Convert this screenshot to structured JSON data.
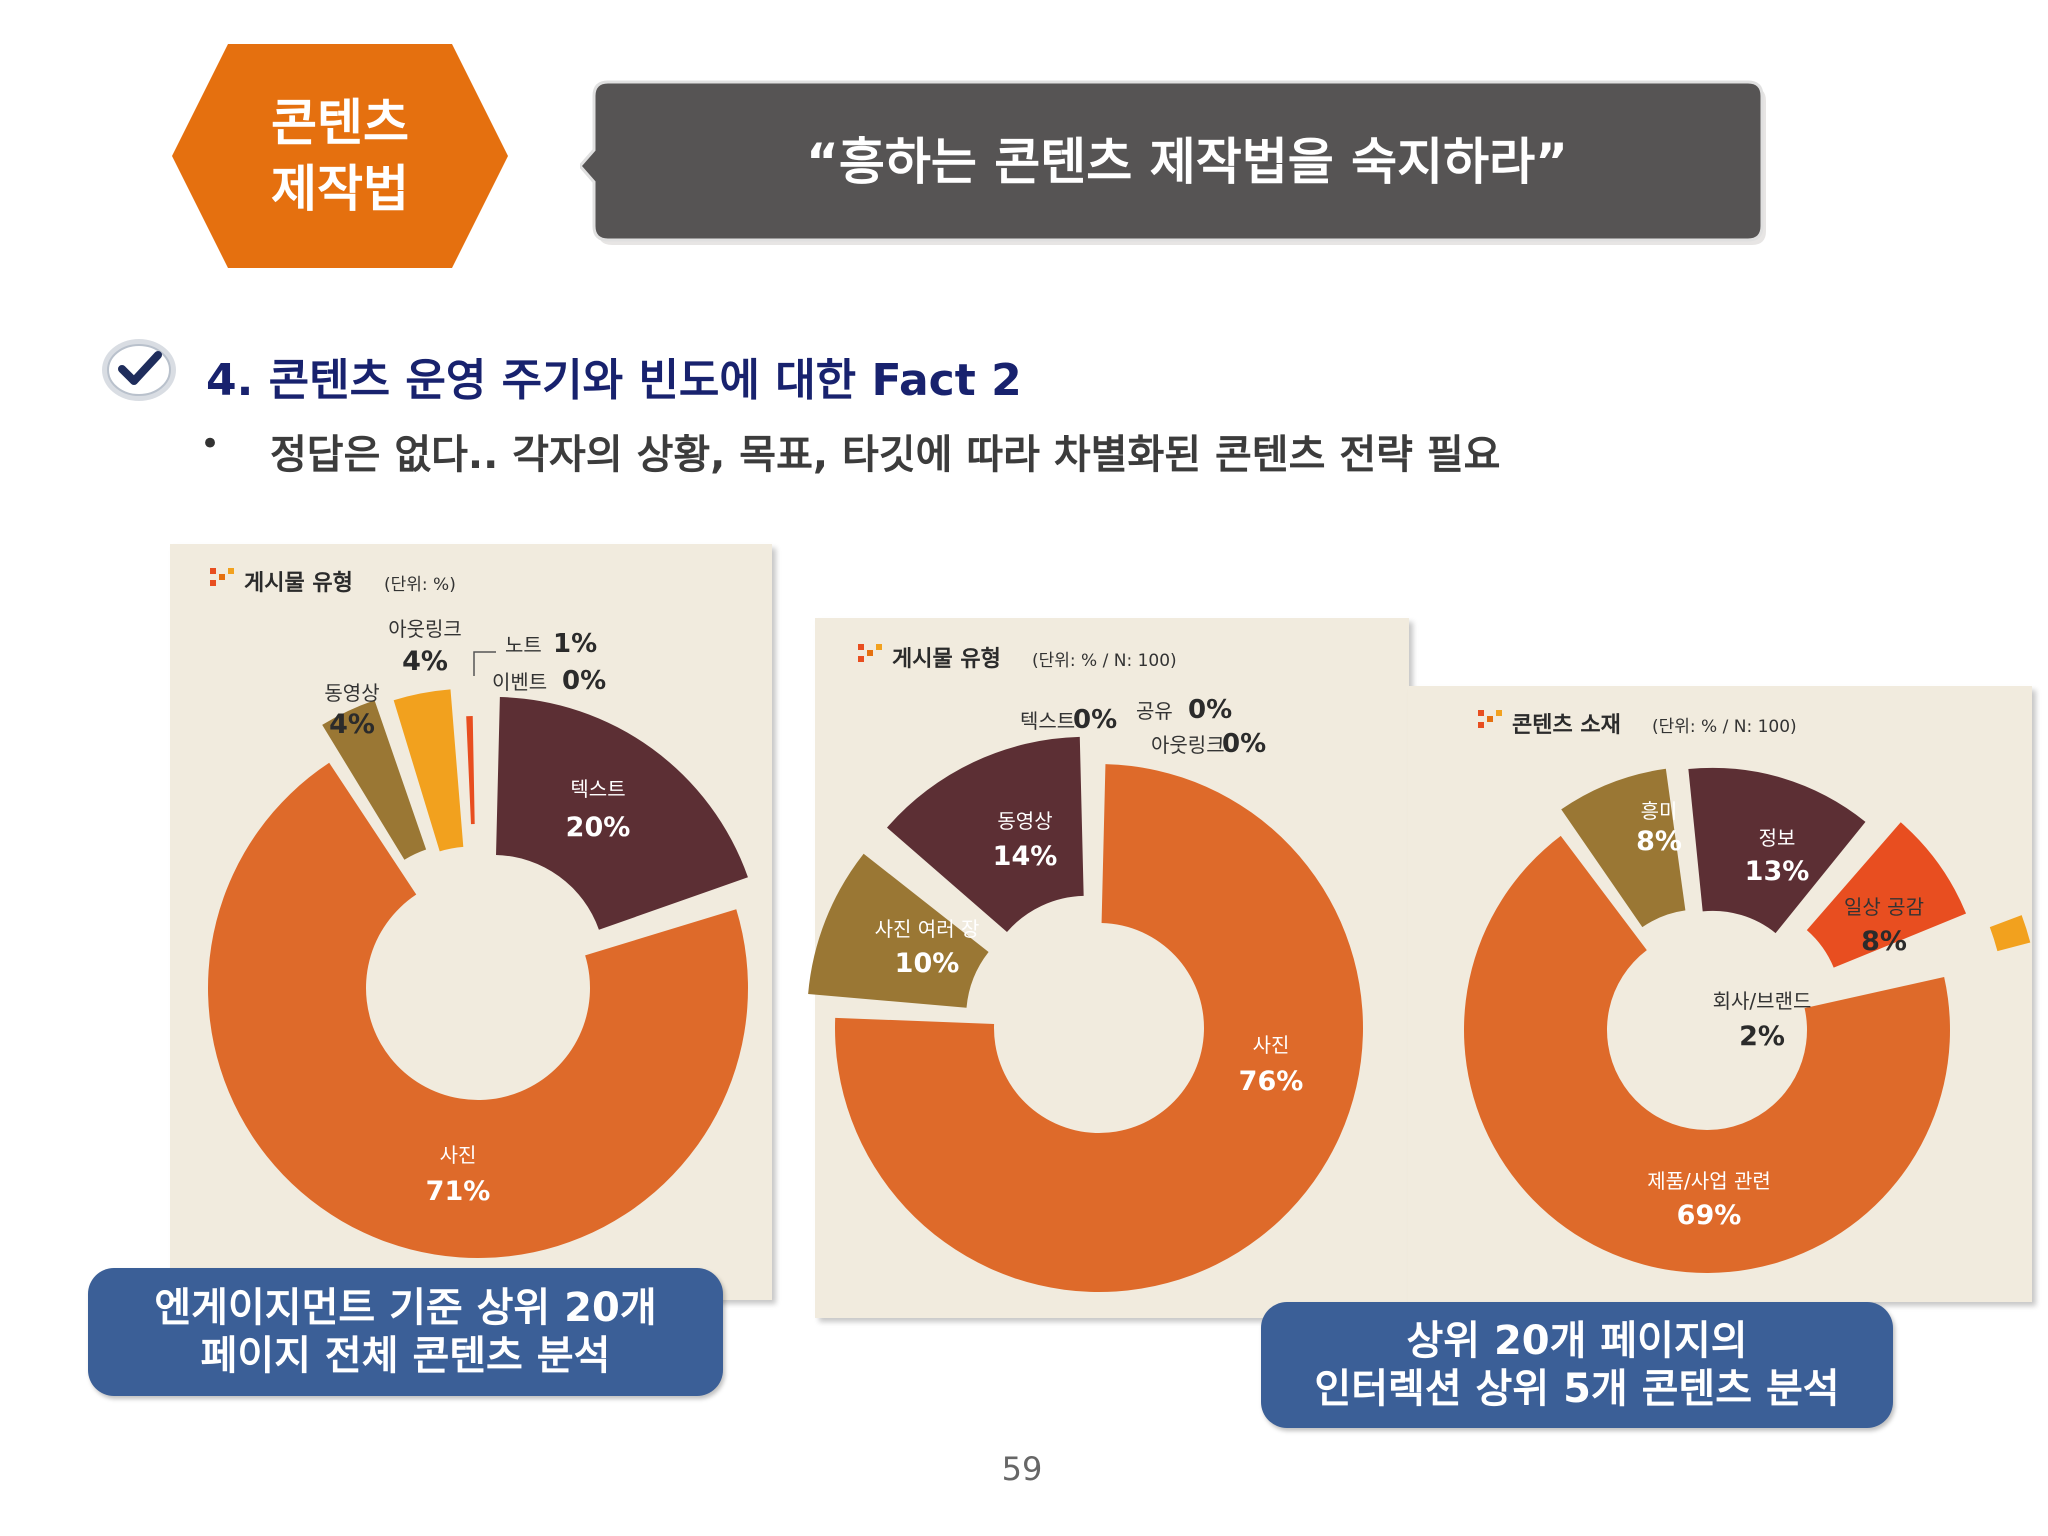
{
  "header": {
    "badge_line1": "콘텐츠",
    "badge_line2": "제작법",
    "quote": "“흥하는 콘텐츠 제작법을 숙지하라”"
  },
  "section": {
    "title": "4. 콘텐츠 운영 주기와 빈도에 대한 Fact 2",
    "bullet": "•",
    "bullet_text": "정답은 없다.. 각자의 상황, 목표, 타깃에 따라 차별화된 콘텐츠 전략 필요"
  },
  "colors": {
    "orange_badge": "#e5700f",
    "dark_box": "#565454",
    "navy_title": "#18226e",
    "blue_note": "#3b5f97",
    "panel_bg": "#f1ebde",
    "slice_orange": "#de6a2a",
    "slice_maroon": "#5c2f34",
    "slice_brown": "#9a7734",
    "slice_yellow": "#f2a11e",
    "slice_red": "#e84e20"
  },
  "chart_data": [
    {
      "type": "pie",
      "title": "게시물 유형",
      "subtitle": "(단위: %)",
      "slices": [
        {
          "label": "사진",
          "value": 71,
          "value_text": "71%",
          "color": "#de6a2a",
          "label_color": "#ffffff"
        },
        {
          "label": "텍스트",
          "value": 20,
          "value_text": "20%",
          "color": "#5c2f34",
          "label_color": "#ffffff"
        },
        {
          "label": "노트",
          "value": 1,
          "value_text": "1%",
          "color": "#e84e20",
          "label_color": "#333333"
        },
        {
          "label": "이벤트",
          "value": 0,
          "value_text": "0%",
          "color": "#e84e20",
          "label_color": "#333333"
        },
        {
          "label": "아웃링크",
          "value": 4,
          "value_text": "4%",
          "color": "#f2a11e",
          "label_color": "#333333"
        },
        {
          "label": "동영상",
          "value": 4,
          "value_text": "4%",
          "color": "#9a7734",
          "label_color": "#333333"
        }
      ]
    },
    {
      "type": "pie",
      "title": "게시물 유형",
      "subtitle": "(단위: % / N: 100)",
      "slices": [
        {
          "label": "사진",
          "value": 76,
          "value_text": "76%",
          "color": "#de6a2a",
          "label_color": "#ffffff"
        },
        {
          "label": "사진 여러 장",
          "value": 10,
          "value_text": "10%",
          "color": "#9a7734",
          "label_color": "#ffffff"
        },
        {
          "label": "동영상",
          "value": 14,
          "value_text": "14%",
          "color": "#5c2f34",
          "label_color": "#ffffff"
        },
        {
          "label": "텍스트",
          "value": 0,
          "value_text": "0%",
          "color": "#5c2f34",
          "label_color": "#333333"
        },
        {
          "label": "공유",
          "value": 0,
          "value_text": "0%",
          "color": "#de6a2a",
          "label_color": "#333333"
        },
        {
          "label": "아웃링크",
          "value": 0,
          "value_text": "0%",
          "color": "#de6a2a",
          "label_color": "#333333"
        }
      ]
    },
    {
      "type": "pie",
      "title": "콘텐츠 소재",
      "subtitle": "(단위: % / N: 100)",
      "slices": [
        {
          "label": "제품/사업 관련",
          "value": 69,
          "value_text": "69%",
          "color": "#de6a2a",
          "label_color": "#ffffff"
        },
        {
          "label": "흥미",
          "value": 8,
          "value_text": "8%",
          "color": "#9a7734",
          "label_color": "#ffffff"
        },
        {
          "label": "정보",
          "value": 13,
          "value_text": "13%",
          "color": "#5c2f34",
          "label_color": "#ffffff"
        },
        {
          "label": "일상 공감",
          "value": 8,
          "value_text": "8%",
          "color": "#e84e20",
          "label_color": "#333333"
        },
        {
          "label": "회사/브랜드",
          "value": 2,
          "value_text": "2%",
          "color": "#f2a11e",
          "label_color": "#333333"
        }
      ]
    }
  ],
  "notes": {
    "left_line1": "엔게이지먼트 기준 상위 20개",
    "left_line2": "페이지 전체 콘텐츠 분석",
    "right_line1": "상위 20개 페이지의",
    "right_line2": "인터렉션 상위 5개 콘텐츠 분석"
  },
  "page_number": "59"
}
